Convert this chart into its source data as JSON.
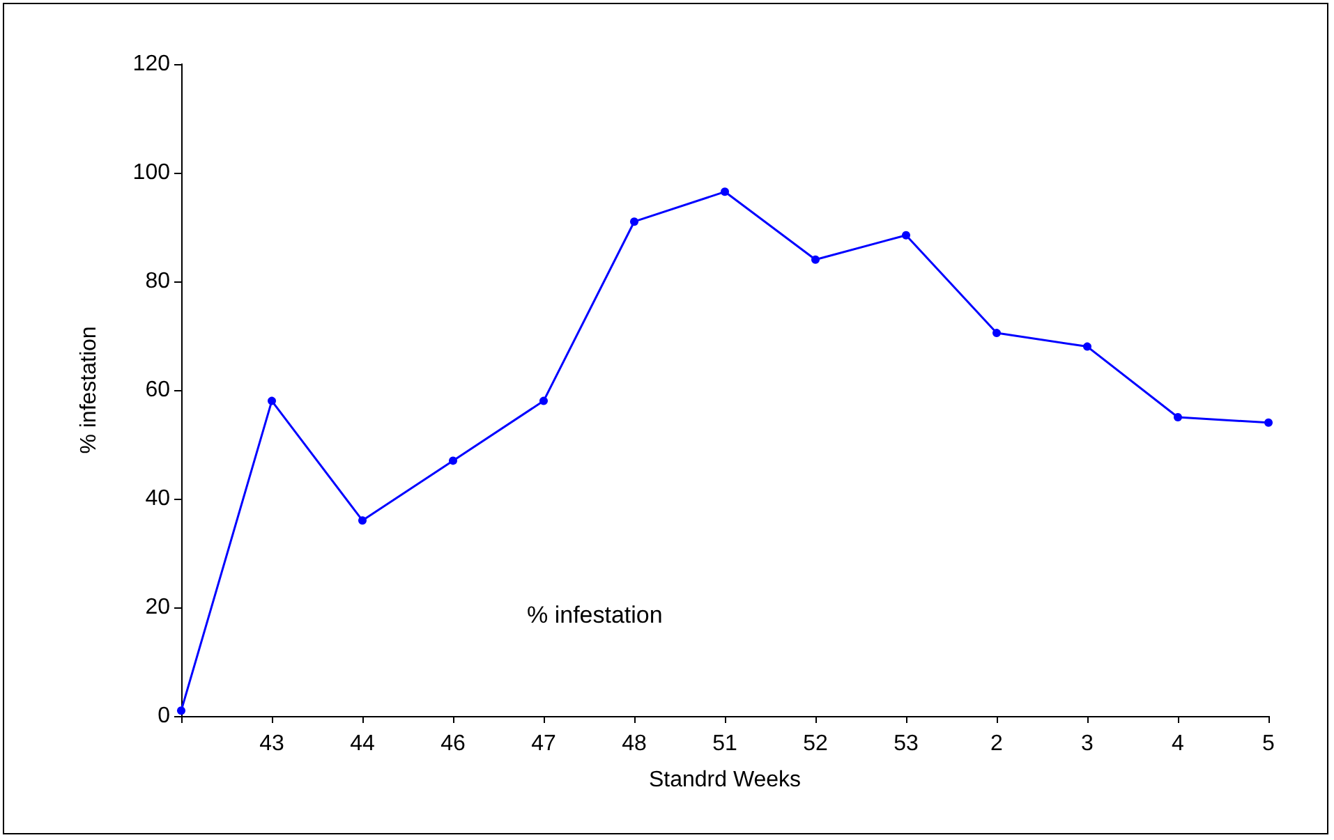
{
  "chart_data": {
    "type": "line",
    "xlabel": "Standrd Weeks",
    "ylabel": "% infestation",
    "categories": [
      null,
      "43",
      "44",
      "46",
      "47",
      "48",
      "51",
      "52",
      "53",
      "2",
      "3",
      "4",
      "5"
    ],
    "series": [
      {
        "color": "#0000ff",
        "values": [
          1,
          58,
          36,
          47,
          58,
          91,
          96.5,
          84,
          88.5,
          70.5,
          68,
          55,
          54
        ]
      }
    ],
    "ylim": [
      0,
      120
    ],
    "yticks": [
      0,
      20,
      40,
      60,
      80,
      100,
      120
    ],
    "grid": false,
    "marker": "circle",
    "line_style": "solid",
    "annotations": [
      "% infestation"
    ]
  }
}
